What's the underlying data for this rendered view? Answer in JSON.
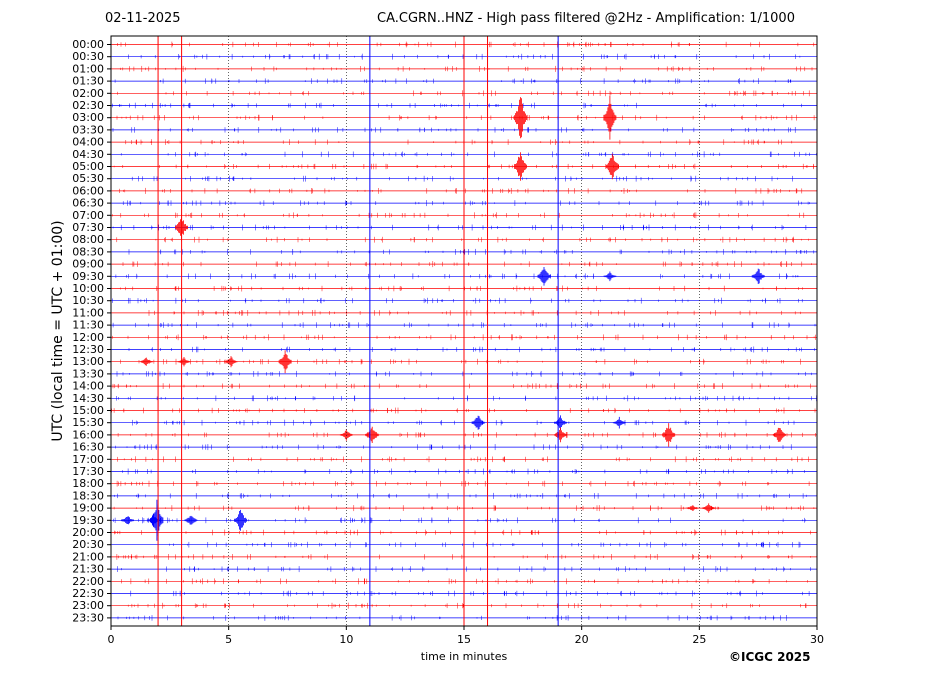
{
  "chart_data": {
    "type": "line",
    "date_label": "02-11-2025",
    "title": "CA.CGRN..HNZ - High pass filtered @2Hz - Amplification: 1/1000",
    "xlabel": "time in minutes",
    "ylabel": "UTC (local time = UTC + 01:00)",
    "xlim": [
      0,
      30
    ],
    "x_ticks": [
      0,
      5,
      10,
      15,
      20,
      25,
      30
    ],
    "x_tick_labels": [
      "0",
      "5",
      "10",
      "15",
      "20",
      "25",
      "30"
    ],
    "dotted_gridlines_x": [
      5,
      10,
      20,
      25
    ],
    "rows": [
      "00:00",
      "00:30",
      "01:00",
      "01:30",
      "02:00",
      "02:30",
      "03:00",
      "03:30",
      "04:00",
      "04:30",
      "05:00",
      "05:30",
      "06:00",
      "06:30",
      "07:00",
      "07:30",
      "08:00",
      "08:30",
      "09:00",
      "09:30",
      "10:00",
      "10:30",
      "11:00",
      "11:30",
      "12:00",
      "12:30",
      "13:00",
      "13:30",
      "14:00",
      "14:30",
      "15:00",
      "15:30",
      "16:00",
      "16:30",
      "17:00",
      "17:30",
      "18:00",
      "18:30",
      "19:00",
      "19:30",
      "20:00",
      "20:30",
      "21:00",
      "21:30",
      "22:00",
      "22:30",
      "23:00",
      "23:30"
    ],
    "row_colors": [
      "#ff0000",
      "#0000ff"
    ],
    "vertical_spikes": [
      {
        "x": 2.0,
        "color": "#ff0000"
      },
      {
        "x": 3.0,
        "color": "#ff0000"
      },
      {
        "x": 11.0,
        "color": "#0000ff"
      },
      {
        "x": 15.0,
        "color": "#ff0000"
      },
      {
        "x": 16.0,
        "color": "#ff0000"
      },
      {
        "x": 19.0,
        "color": "#0000ff"
      }
    ],
    "events": [
      {
        "row": 6,
        "x": 17.4,
        "amp": 28,
        "color": "#ff0000"
      },
      {
        "row": 6,
        "x": 21.2,
        "amp": 22,
        "color": "#ff0000"
      },
      {
        "row": 10,
        "x": 17.4,
        "amp": 20,
        "color": "#ff0000"
      },
      {
        "row": 10,
        "x": 21.3,
        "amp": 18,
        "color": "#ff0000"
      },
      {
        "row": 15,
        "x": 3.0,
        "amp": 14,
        "color": "#ff0000"
      },
      {
        "row": 19,
        "x": 18.4,
        "amp": 14,
        "color": "#0000ff"
      },
      {
        "row": 19,
        "x": 27.5,
        "amp": 10,
        "color": "#0000ff"
      },
      {
        "row": 19,
        "x": 21.2,
        "amp": 5,
        "color": "#0000ff"
      },
      {
        "row": 26,
        "x": 7.4,
        "amp": 14,
        "color": "#ff0000"
      },
      {
        "row": 26,
        "x": 1.5,
        "amp": 5,
        "color": "#ff0000"
      },
      {
        "row": 26,
        "x": 5.1,
        "amp": 6,
        "color": "#ff0000"
      },
      {
        "row": 26,
        "x": 3.1,
        "amp": 5,
        "color": "#ff0000"
      },
      {
        "row": 31,
        "x": 15.6,
        "amp": 10,
        "color": "#0000ff"
      },
      {
        "row": 31,
        "x": 19.1,
        "amp": 8,
        "color": "#0000ff"
      },
      {
        "row": 31,
        "x": 21.6,
        "amp": 6,
        "color": "#0000ff"
      },
      {
        "row": 32,
        "x": 10.0,
        "amp": 6,
        "color": "#ff0000"
      },
      {
        "row": 32,
        "x": 11.1,
        "amp": 10,
        "color": "#ff0000"
      },
      {
        "row": 32,
        "x": 19.1,
        "amp": 8,
        "color": "#ff0000"
      },
      {
        "row": 32,
        "x": 23.7,
        "amp": 14,
        "color": "#ff0000"
      },
      {
        "row": 32,
        "x": 28.4,
        "amp": 10,
        "color": "#ff0000"
      },
      {
        "row": 38,
        "x": 25.4,
        "amp": 6,
        "color": "#ff0000"
      },
      {
        "row": 38,
        "x": 24.7,
        "amp": 4,
        "color": "#ff0000"
      },
      {
        "row": 39,
        "x": 0.7,
        "amp": 6,
        "color": "#0000ff"
      },
      {
        "row": 39,
        "x": 1.8,
        "amp": 7,
        "color": "#0000ff"
      },
      {
        "row": 39,
        "x": 3.4,
        "amp": 7,
        "color": "#0000ff"
      },
      {
        "row": 39,
        "x": 5.5,
        "amp": 14,
        "color": "#0000ff"
      },
      {
        "row": 39,
        "x": 1.95,
        "amp": 22,
        "color": "#0000ff"
      }
    ],
    "grid": false,
    "legend": "none"
  },
  "copyright": "©ICGC 2025"
}
